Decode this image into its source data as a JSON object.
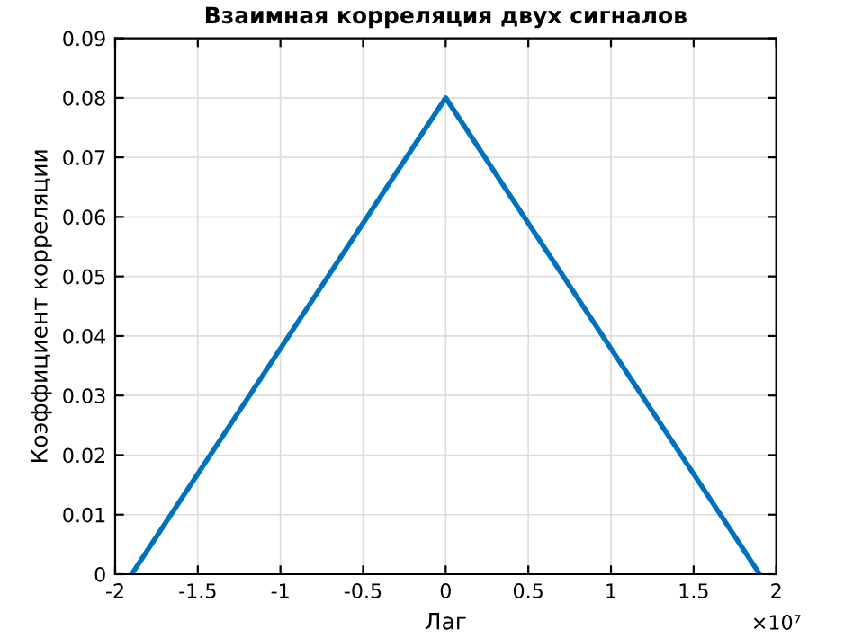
{
  "chart_data": {
    "type": "line",
    "title": "Взаимная корреляция двух сигналов",
    "xlabel": "Лаг",
    "ylabel": "Коэффициент корреляции",
    "x": [
      -1.9,
      0,
      1.9
    ],
    "series": [
      {
        "color": "#0072bd",
        "values": [
          0,
          0.08,
          0
        ]
      }
    ],
    "xlim": [
      -2,
      2
    ],
    "xticks": [
      -2,
      -1.5,
      -1,
      -0.5,
      0,
      0.5,
      1,
      1.5,
      2
    ],
    "ylim": [
      0,
      0.09
    ],
    "yticks": [
      0,
      0.01,
      0.02,
      0.03,
      0.04,
      0.05,
      0.06,
      0.07,
      0.08,
      0.09
    ],
    "grid": true,
    "legend": false,
    "marker": "none",
    "line_style": "solid",
    "annotations": [
      "×10⁷"
    ]
  }
}
